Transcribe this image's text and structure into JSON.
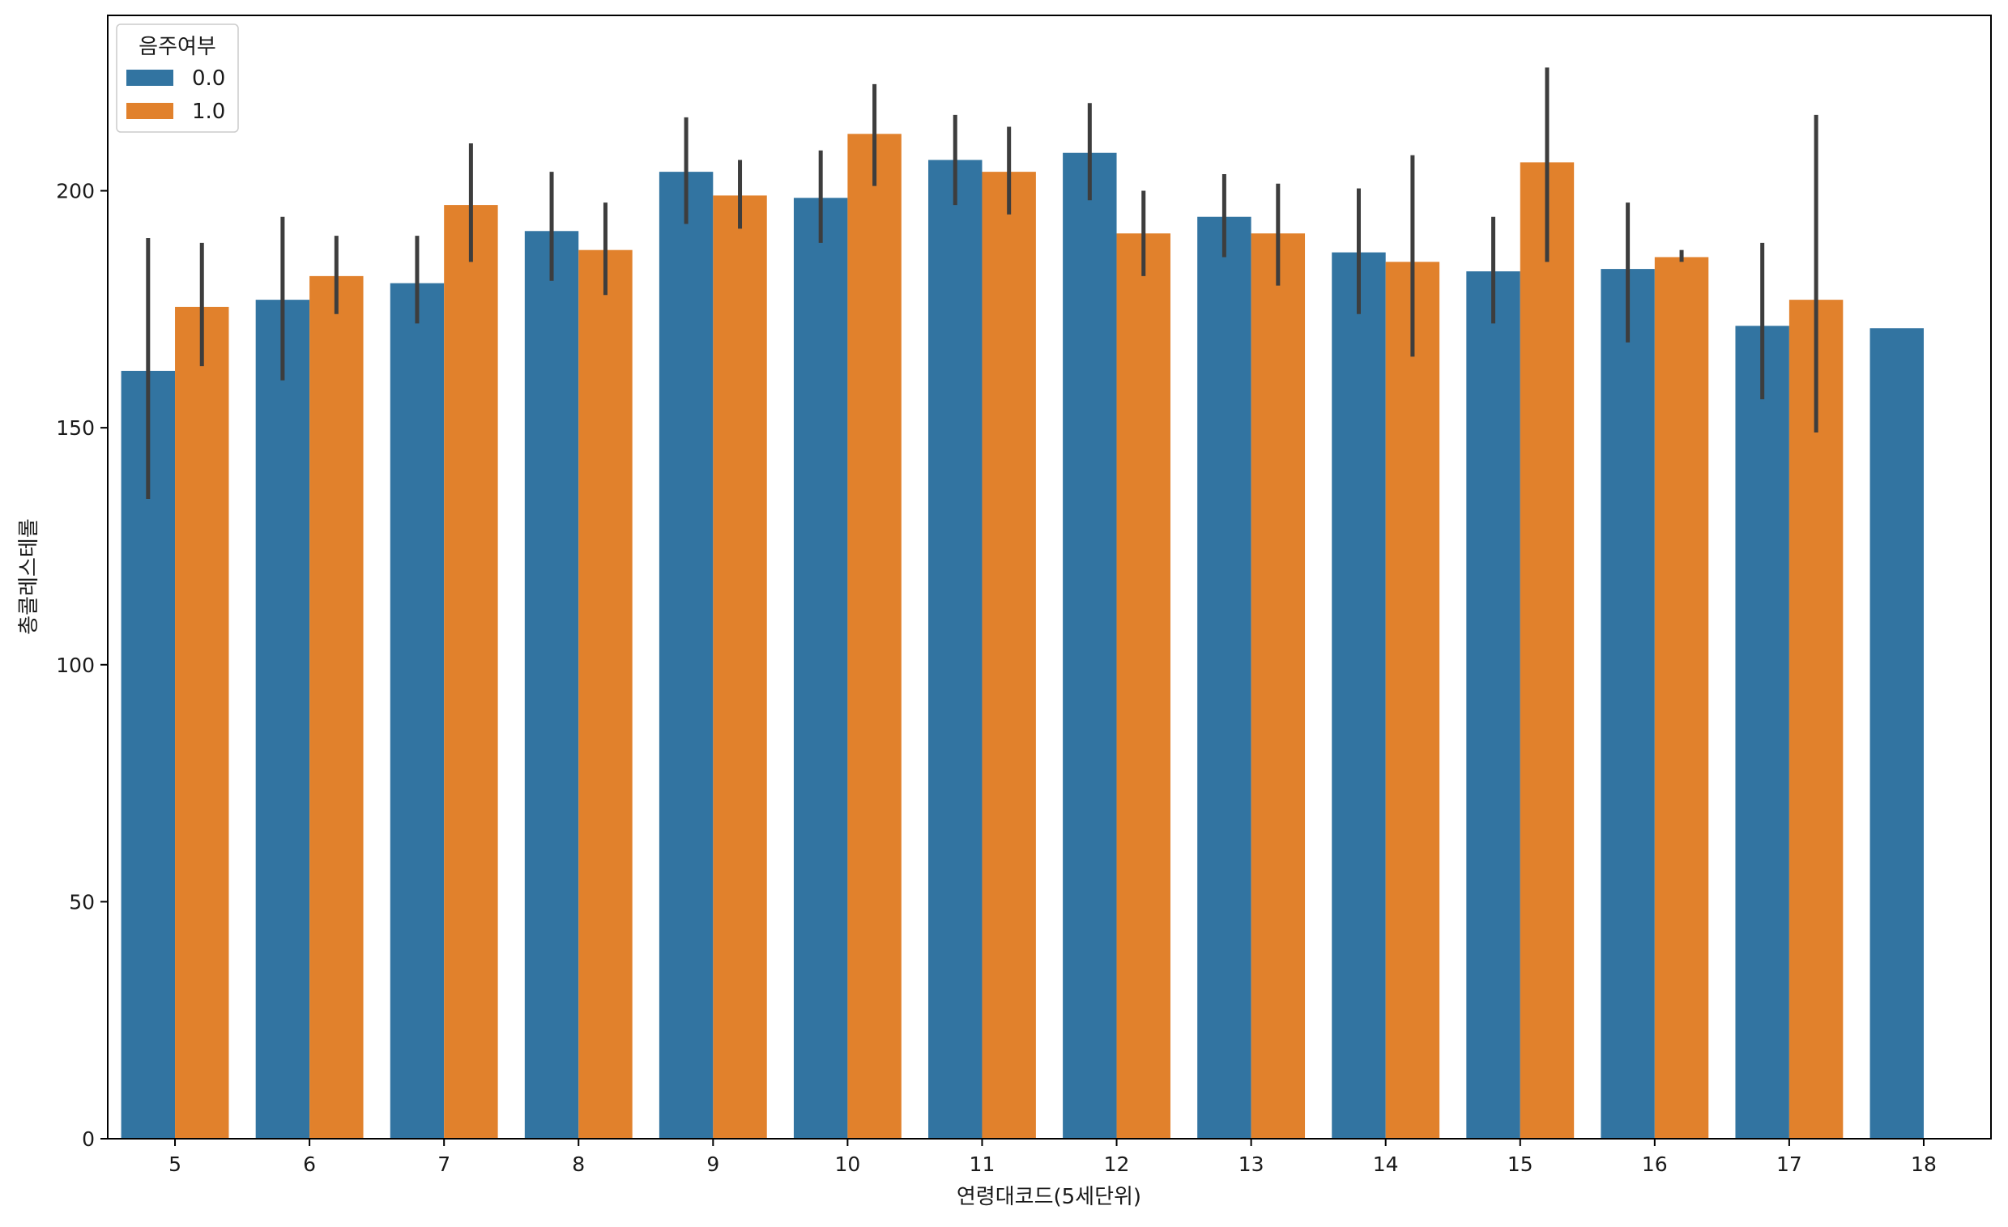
{
  "chart_data": {
    "type": "bar",
    "title": "",
    "xlabel": "연령대코드(5세단위)",
    "ylabel": "총콜레스테롤",
    "categories": [
      "5",
      "6",
      "7",
      "8",
      "9",
      "10",
      "11",
      "12",
      "13",
      "14",
      "15",
      "16",
      "17",
      "18"
    ],
    "ylim": [
      0,
      237
    ],
    "yticks": [
      0,
      50,
      100,
      150,
      200
    ],
    "grid": false,
    "legend": {
      "title": "음주여부",
      "placement": "top-left"
    },
    "series": [
      {
        "name": "0.0",
        "color": "#3274a1",
        "values": [
          162,
          177,
          180.5,
          191.5,
          204,
          198.5,
          206.5,
          208,
          194.5,
          187,
          183,
          183.5,
          171.5,
          171
        ],
        "err_low": [
          135,
          160,
          172,
          181,
          193,
          189,
          197,
          198,
          186,
          174,
          172,
          168,
          156,
          null
        ],
        "err_high": [
          190,
          194.5,
          190.5,
          204,
          215.5,
          208.5,
          216,
          218.5,
          203.5,
          200.5,
          194.5,
          197.5,
          189,
          null
        ]
      },
      {
        "name": "1.0",
        "color": "#e1812c",
        "values": [
          175.5,
          182,
          197,
          187.5,
          199,
          212,
          204,
          191,
          191,
          185,
          206,
          186,
          177,
          null
        ],
        "err_low": [
          163,
          174,
          185,
          178,
          192,
          201,
          195,
          182,
          180,
          165,
          185,
          185,
          149,
          null
        ],
        "err_high": [
          189,
          190.5,
          210,
          197.5,
          206.5,
          222.5,
          213.5,
          200,
          201.5,
          207.5,
          226,
          187.5,
          216,
          null
        ]
      }
    ]
  }
}
